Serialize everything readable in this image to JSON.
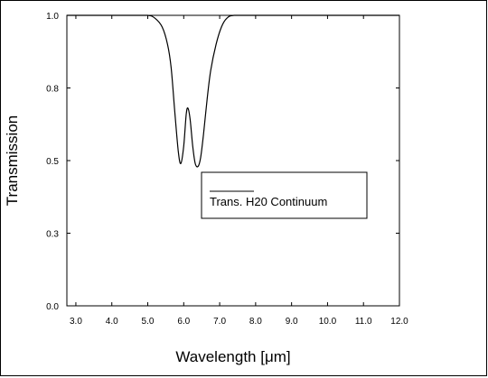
{
  "chart_data": {
    "type": "line",
    "xlabel": "Wavelength [μm]",
    "ylabel": "Transmission",
    "xlim": [
      2.75,
      12.0
    ],
    "ylim": [
      0.0,
      1.0
    ],
    "x_ticks": [
      "3.0",
      "4.0",
      "5.0",
      "6.0",
      "7.0",
      "8.0",
      "9.0",
      "10.0",
      "11.0",
      "12.0"
    ],
    "y_ticks": [
      "0.0",
      "0.3",
      "0.5",
      "0.8",
      "1.0"
    ],
    "y_tick_values": [
      0.0,
      0.25,
      0.5,
      0.75,
      1.0
    ],
    "grid": false,
    "legend_position": "center-right",
    "series": [
      {
        "name": "Trans. H20 Continuum",
        "color": "#000000",
        "x": [
          2.75,
          4.5,
          5.0,
          5.2,
          5.4,
          5.55,
          5.65,
          5.75,
          5.85,
          5.92,
          6.0,
          6.07,
          6.12,
          6.18,
          6.25,
          6.32,
          6.4,
          6.47,
          6.55,
          6.65,
          6.75,
          6.9,
          7.05,
          7.2,
          7.4,
          8.0,
          12.0
        ],
        "y": [
          1.0,
          1.0,
          1.0,
          0.99,
          0.96,
          0.9,
          0.82,
          0.67,
          0.53,
          0.49,
          0.55,
          0.66,
          0.68,
          0.64,
          0.55,
          0.49,
          0.48,
          0.51,
          0.59,
          0.71,
          0.81,
          0.9,
          0.96,
          0.99,
          1.0,
          1.0,
          1.0
        ]
      }
    ]
  }
}
